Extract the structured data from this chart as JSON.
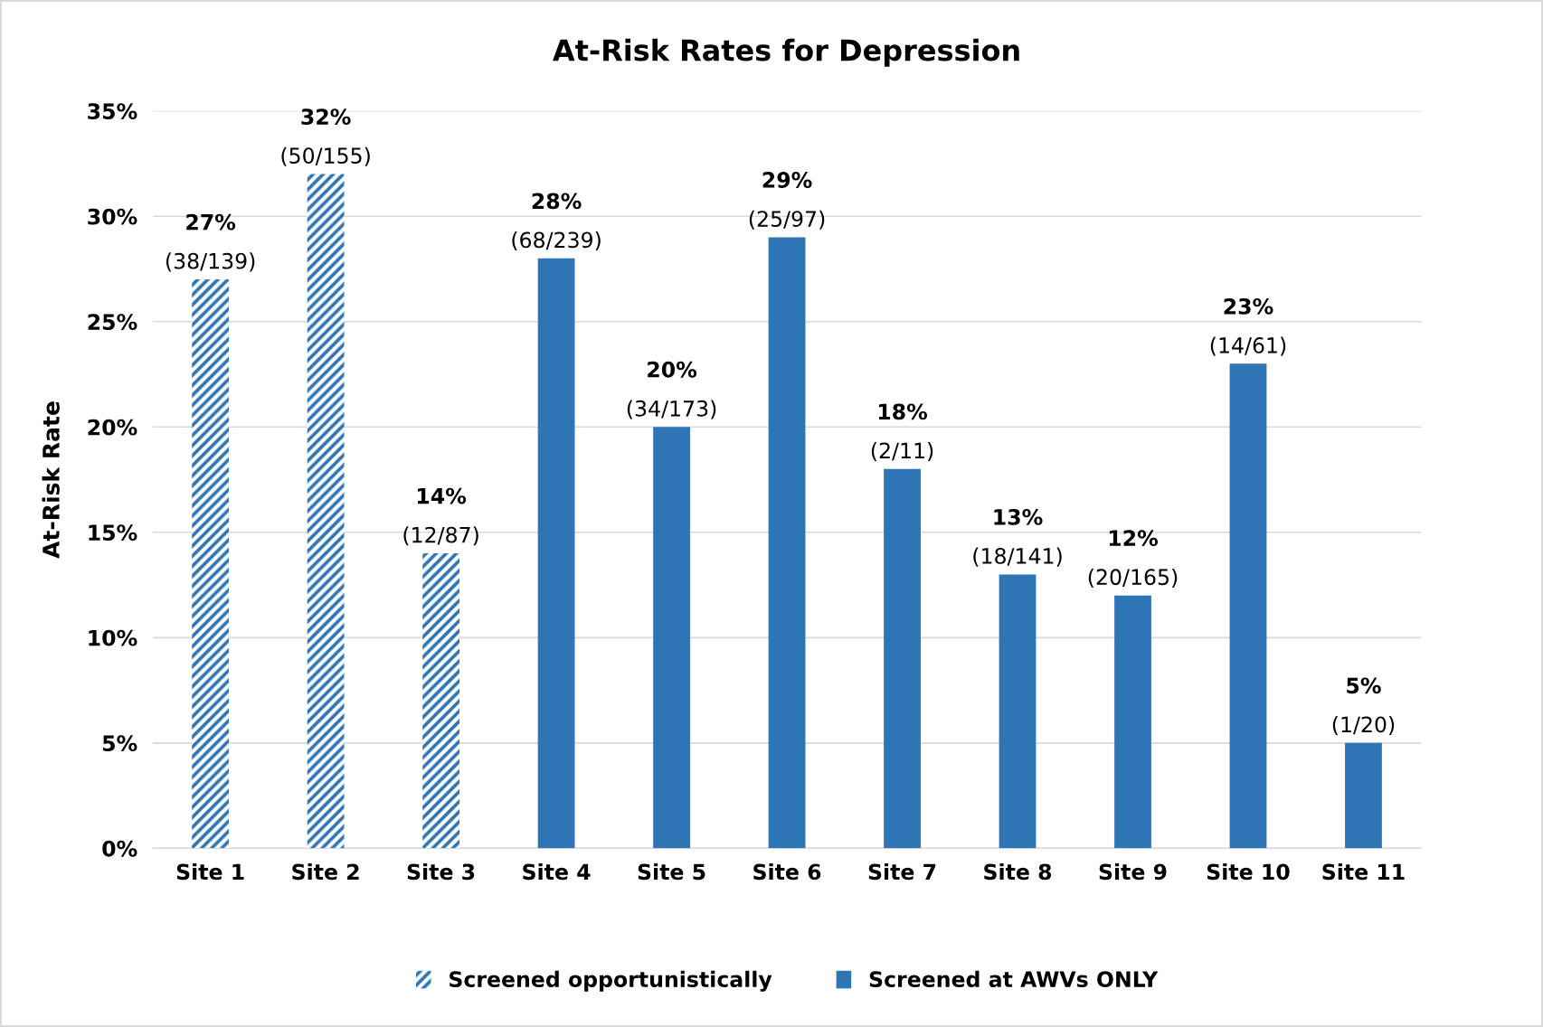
{
  "chart_data": {
    "type": "bar",
    "title": "At-Risk Rates for Depression",
    "ylabel": "At-Risk Rate",
    "categories": [
      "Site 1",
      "Site 2",
      "Site 3",
      "Site 4",
      "Site 5",
      "Site 6",
      "Site 7",
      "Site 8",
      "Site 9",
      "Site 10",
      "Site 11"
    ],
    "series": [
      {
        "name": "Screened opportunistically",
        "color": "#2e75b6",
        "values": [
          27,
          32,
          14,
          null,
          null,
          null,
          null,
          null,
          null,
          null,
          null
        ],
        "value_labels": [
          "27%\n(38/139)",
          "32%\n(50/155)",
          "14%\n(12/87)",
          null,
          null,
          null,
          null,
          null,
          null,
          null,
          null
        ]
      },
      {
        "name": "Screened at AWVs ONLY",
        "color": "#2e75b6",
        "values": [
          null,
          null,
          null,
          28,
          20,
          29,
          18,
          13,
          12,
          23,
          5
        ],
        "value_labels": [
          null,
          null,
          null,
          "28%\n(68/239)",
          "20%\n(34/173)",
          "29%\n(25/97)",
          "18%\n(2/11)",
          "13%\n(18/141)",
          "12%\n(20/165)",
          "23%\n(14/61)",
          "5%\n(1/20)"
        ]
      }
    ],
    "ylim": [
      0,
      35
    ],
    "yticks": [
      {
        "value": 0,
        "label": "0%"
      },
      {
        "value": 5,
        "label": "5%"
      },
      {
        "value": 10,
        "label": "10%"
      },
      {
        "value": 15,
        "label": "15%"
      },
      {
        "value": 20,
        "label": "20%"
      },
      {
        "value": 25,
        "label": "25%"
      },
      {
        "value": 30,
        "label": "30%"
      },
      {
        "value": 35,
        "label": "35%"
      }
    ],
    "grid": "y",
    "legend": "bottom"
  }
}
